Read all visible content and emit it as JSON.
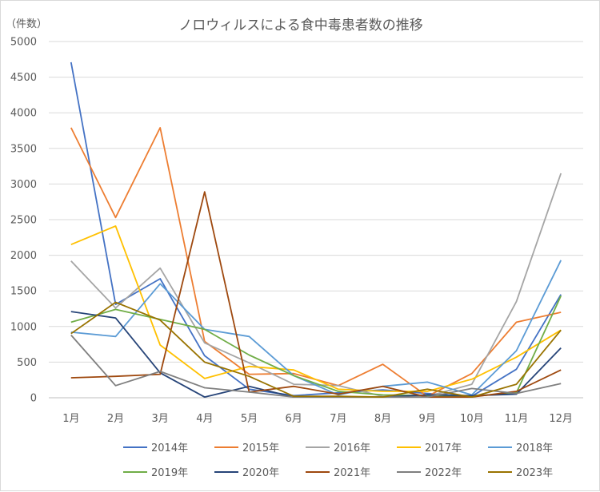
{
  "chart_data": {
    "type": "line",
    "title": "ノロウィルスによる食中毒患者数の推移",
    "ylabel": "（件数）",
    "xlabel": "",
    "categories": [
      "1月",
      "2月",
      "3月",
      "4月",
      "5月",
      "6月",
      "7月",
      "8月",
      "9月",
      "10月",
      "11月",
      "12月"
    ],
    "ylim": [
      0,
      5000
    ],
    "yticks": [
      "0",
      "500",
      "1000",
      "1500",
      "2000",
      "2500",
      "3000",
      "3500",
      "4000",
      "4500",
      "5000"
    ],
    "grid": true,
    "legend_position": "bottom",
    "series": [
      {
        "name": "2014年",
        "color": "#4472c4",
        "values": [
          4710,
          1310,
          1670,
          590,
          120,
          30,
          70,
          110,
          60,
          20,
          400,
          1450
        ]
      },
      {
        "name": "2015年",
        "color": "#ed7d31",
        "values": [
          3790,
          2530,
          3790,
          790,
          330,
          340,
          170,
          470,
          20,
          340,
          1060,
          1200
        ]
      },
      {
        "name": "2016年",
        "color": "#a5a5a5",
        "values": [
          1920,
          1260,
          1820,
          770,
          490,
          190,
          170,
          20,
          20,
          190,
          1350,
          3150
        ]
      },
      {
        "name": "2017年",
        "color": "#ffc000",
        "values": [
          2150,
          2410,
          740,
          270,
          440,
          390,
          120,
          90,
          90,
          260,
          570,
          950
        ]
      },
      {
        "name": "2018年",
        "color": "#5b9bd5",
        "values": [
          920,
          860,
          1600,
          960,
          860,
          310,
          40,
          160,
          220,
          40,
          660,
          1930
        ]
      },
      {
        "name": "2019年",
        "color": "#70ad47",
        "values": [
          1060,
          1240,
          1100,
          960,
          600,
          310,
          90,
          40,
          30,
          20,
          70,
          1430
        ]
      },
      {
        "name": "2020年",
        "color": "#264478",
        "values": [
          1210,
          1120,
          350,
          10,
          160,
          10,
          10,
          10,
          40,
          30,
          50,
          700
        ]
      },
      {
        "name": "2021年",
        "color": "#9e480e",
        "values": [
          280,
          300,
          330,
          2890,
          80,
          160,
          50,
          160,
          10,
          10,
          90,
          390
        ]
      },
      {
        "name": "2022年",
        "color": "#7f7f7f",
        "values": [
          880,
          170,
          370,
          140,
          80,
          10,
          10,
          10,
          10,
          130,
          60,
          200
        ]
      },
      {
        "name": "2023年",
        "color": "#997300",
        "values": [
          900,
          1340,
          1090,
          500,
          300,
          20,
          20,
          10,
          120,
          10,
          190,
          950
        ]
      }
    ]
  }
}
